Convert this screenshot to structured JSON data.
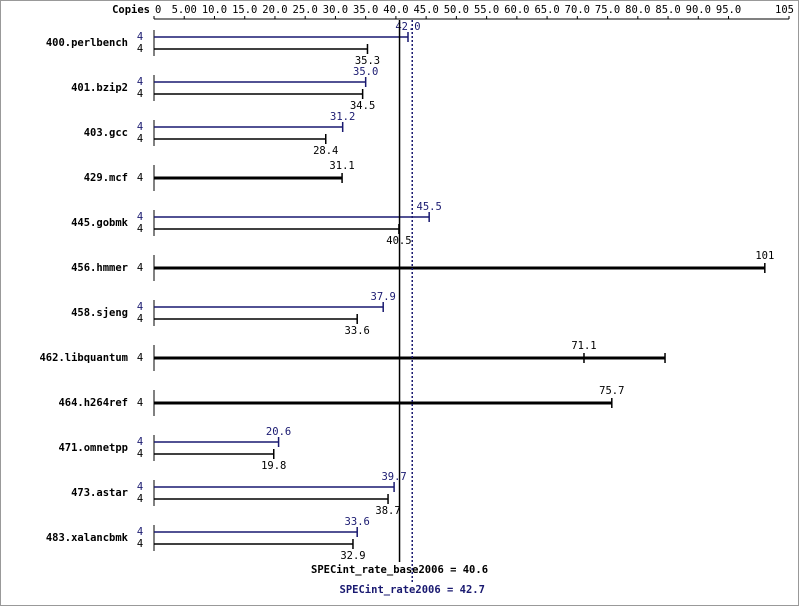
{
  "chart_data": {
    "type": "bar",
    "orientation": "horizontal",
    "copies_label": "Copies",
    "categories": [
      "400.perlbench",
      "401.bzip2",
      "403.gcc",
      "429.mcf",
      "445.gobmk",
      "456.hmmer",
      "458.sjeng",
      "462.libquantum",
      "464.h264ref",
      "471.omnetpp",
      "473.astar",
      "483.xalancbmk"
    ],
    "series": [
      {
        "color": "#191970",
        "values": [
          42.0,
          35.0,
          31.2,
          null,
          45.5,
          null,
          37.9,
          null,
          null,
          20.6,
          39.7,
          33.6
        ],
        "value_labels": [
          "42.0",
          "35.0",
          "31.2",
          null,
          "45.5",
          null,
          "37.9",
          null,
          null,
          "20.6",
          "39.7",
          "33.6"
        ],
        "copies": [
          4,
          4,
          4,
          null,
          4,
          null,
          4,
          null,
          null,
          4,
          4,
          4
        ]
      },
      {
        "color": "#000000",
        "values": [
          35.3,
          34.5,
          28.4,
          31.1,
          40.5,
          101,
          33.6,
          71.1,
          75.7,
          19.8,
          38.7,
          32.9
        ],
        "value_labels": [
          "35.3",
          "34.5",
          "28.4",
          "31.1",
          "40.5",
          "101",
          "33.6",
          "71.1",
          "75.7",
          "19.8",
          "38.7",
          "32.9"
        ],
        "max": [
          null,
          null,
          null,
          null,
          null,
          null,
          null,
          84.5,
          null,
          null,
          null,
          null
        ],
        "copies": [
          4,
          4,
          4,
          4,
          4,
          4,
          4,
          4,
          4,
          4,
          4,
          4
        ]
      }
    ],
    "xlim": [
      0,
      105
    ],
    "xticks": [
      0,
      {
        "value": 5,
        "label": "5.00"
      },
      {
        "value": 10,
        "label": "10.0"
      },
      {
        "value": 15,
        "label": "15.0"
      },
      {
        "value": 20,
        "label": "20.0"
      },
      {
        "value": 25,
        "label": "25.0"
      },
      {
        "value": 30,
        "label": "30.0"
      },
      {
        "value": 35,
        "label": "35.0"
      },
      {
        "value": 40,
        "label": "40.0"
      },
      {
        "value": 45,
        "label": "45.0"
      },
      {
        "value": 50,
        "label": "50.0"
      },
      {
        "value": 55,
        "label": "55.0"
      },
      {
        "value": 60,
        "label": "60.0"
      },
      {
        "value": 65,
        "label": "65.0"
      },
      {
        "value": 70,
        "label": "70.0"
      },
      {
        "value": 75,
        "label": "75.0"
      },
      {
        "value": 80,
        "label": "80.0"
      },
      {
        "value": 85,
        "label": "85.0"
      },
      {
        "value": 90,
        "label": "90.0"
      },
      {
        "value": 95,
        "label": "95.0"
      },
      105
    ],
    "references": [
      {
        "label": "SPECint_rate_base2006 = 40.6",
        "value": 40.6,
        "color": "#000000"
      },
      {
        "label": "SPECint_rate2006 = 42.7",
        "value": 42.7,
        "color": "#191970"
      }
    ]
  }
}
